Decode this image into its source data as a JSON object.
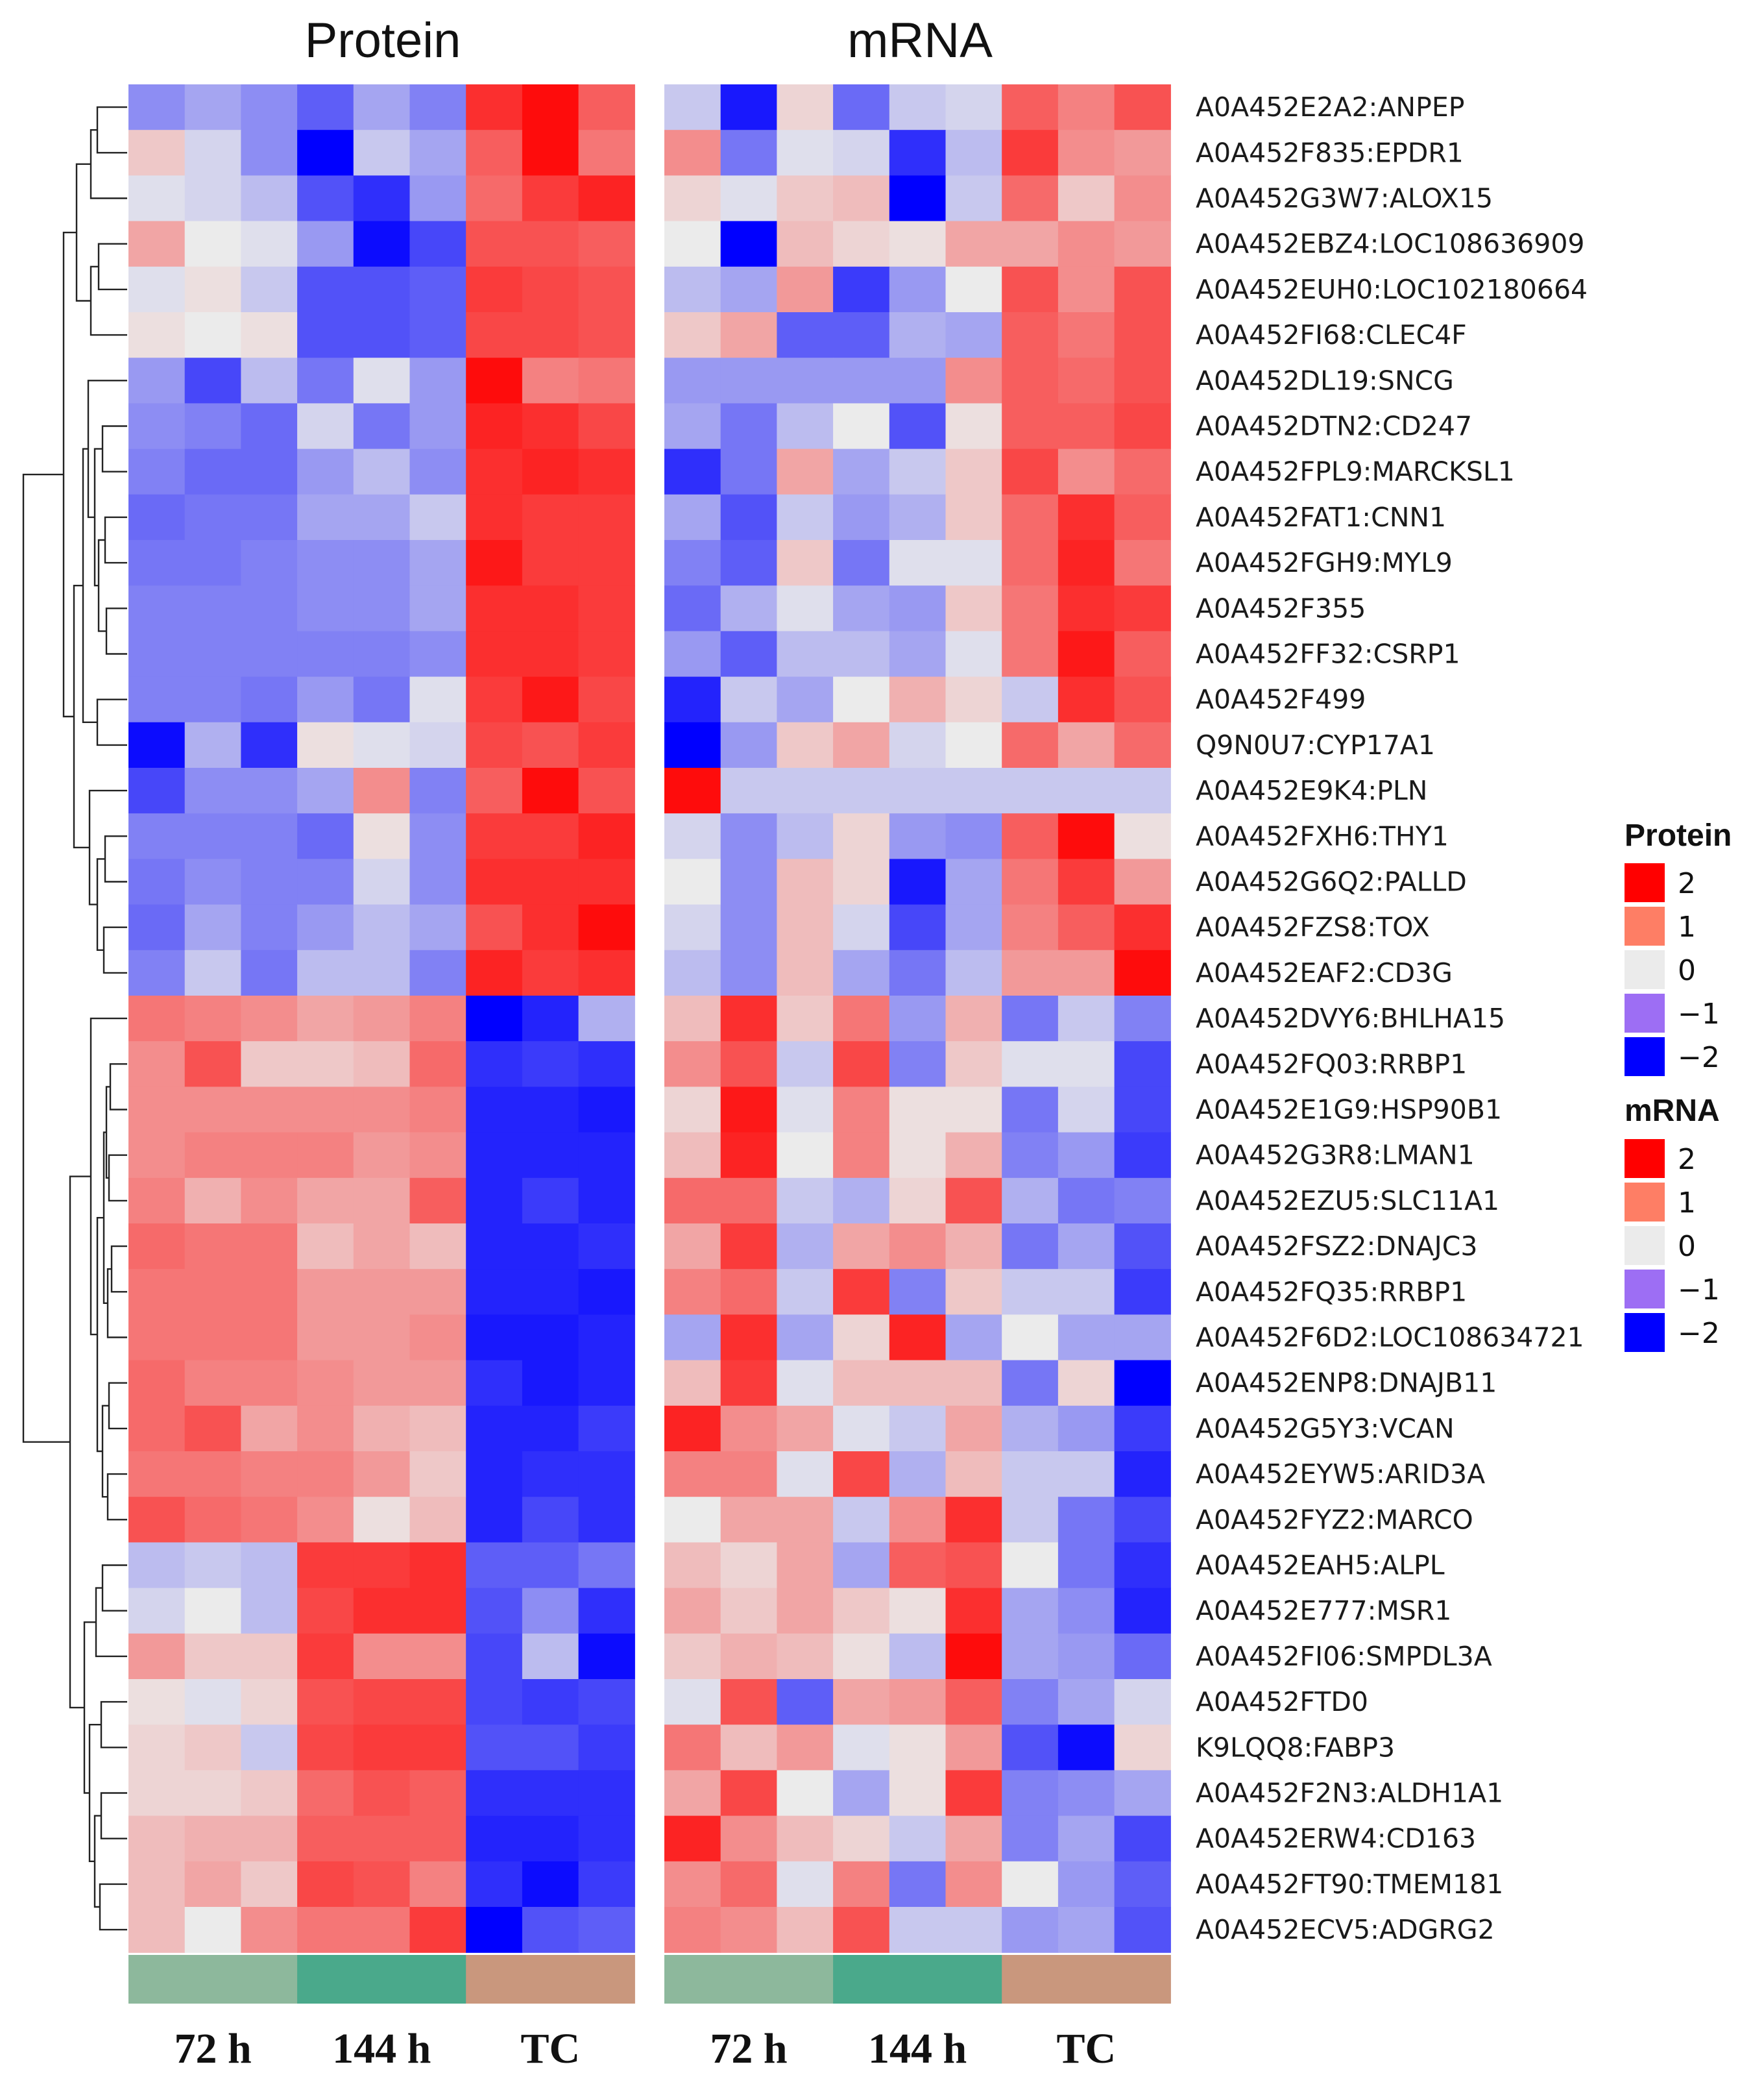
{
  "chart_data": {
    "type": "heatmap",
    "panels": [
      {
        "key": "protein",
        "title": "Protein"
      },
      {
        "key": "mrna",
        "title": "mRNA"
      }
    ],
    "groups": [
      {
        "label": "72 h",
        "color": "#8db89c"
      },
      {
        "label": "144 h",
        "color": "#4aa98b"
      },
      {
        "label": "TC",
        "color": "#c9977d"
      }
    ],
    "rows": [
      "A0A452E2A2:ANPEP",
      "A0A452F835:EPDR1",
      "A0A452G3W7:ALOX15",
      "A0A452EBZ4:LOC108636909",
      "A0A452EUH0:LOC102180664",
      "A0A452FI68:CLEC4F",
      "A0A452DL19:SNCG",
      "A0A452DTN2:CD247",
      "A0A452FPL9:MARCKSL1",
      "A0A452FAT1:CNN1",
      "A0A452FGH9:MYL9",
      "A0A452F355",
      "A0A452FF32:CSRP1",
      "A0A452F499",
      "Q9N0U7:CYP17A1",
      "A0A452E9K4:PLN",
      "A0A452FXH6:THY1",
      "A0A452G6Q2:PALLD",
      "A0A452FZS8:TOX",
      "A0A452EAF2:CD3G",
      "A0A452DVY6:BHLHA15",
      "A0A452FQ03:RRBP1",
      "A0A452E1G9:HSP90B1",
      "A0A452G3R8:LMAN1",
      "A0A452EZU5:SLC11A1",
      "A0A452FSZ2:DNAJC3",
      "A0A452FQ35:RRBP1",
      "A0A452F6D2:LOC108634721",
      "A0A452ENP8:DNAJB11",
      "A0A452G5Y3:VCAN",
      "A0A452EYW5:ARID3A",
      "A0A452FYZ2:MARCO",
      "A0A452EAH5:ALPL",
      "A0A452E777:MSR1",
      "A0A452FI06:SMPDL3A",
      "A0A452FTD0",
      "K9LQQ8:FABP3",
      "A0A452F2N3:ALDH1A1",
      "A0A452ERW4:CD163",
      "A0A452FT90:TMEM181",
      "A0A452ECV5:ADGRG2"
    ],
    "protein_values": [
      [
        -0.8,
        -0.6,
        -0.8,
        -1.2,
        -0.6,
        -0.9,
        1.6,
        1.9,
        1.2
      ],
      [
        0.3,
        -0.2,
        -0.8,
        -2.0,
        -0.3,
        -0.6,
        1.2,
        1.9,
        1.0
      ],
      [
        -0.1,
        -0.2,
        -0.4,
        -1.3,
        -1.6,
        -0.7,
        1.1,
        1.5,
        1.7
      ],
      [
        0.6,
        0.0,
        -0.1,
        -0.7,
        -1.9,
        -1.4,
        1.3,
        1.3,
        1.2
      ],
      [
        -0.1,
        0.1,
        -0.3,
        -1.3,
        -1.3,
        -1.2,
        1.5,
        1.4,
        1.3
      ],
      [
        0.1,
        0.0,
        0.1,
        -1.3,
        -1.3,
        -1.2,
        1.4,
        1.4,
        1.3
      ],
      [
        -0.7,
        -1.4,
        -0.4,
        -1.0,
        -0.1,
        -0.7,
        1.9,
        0.9,
        1.0
      ],
      [
        -0.8,
        -0.9,
        -1.1,
        -0.2,
        -1.0,
        -0.7,
        1.7,
        1.6,
        1.4
      ],
      [
        -0.9,
        -1.1,
        -1.1,
        -0.7,
        -0.4,
        -0.8,
        1.6,
        1.7,
        1.6
      ],
      [
        -1.1,
        -1.0,
        -1.0,
        -0.6,
        -0.6,
        -0.3,
        1.6,
        1.5,
        1.5
      ],
      [
        -1.0,
        -1.0,
        -0.9,
        -0.8,
        -0.8,
        -0.6,
        1.8,
        1.5,
        1.5
      ],
      [
        -0.9,
        -0.9,
        -0.9,
        -0.8,
        -0.8,
        -0.6,
        1.6,
        1.6,
        1.5
      ],
      [
        -0.9,
        -0.9,
        -0.9,
        -0.9,
        -0.9,
        -0.8,
        1.6,
        1.6,
        1.5
      ],
      [
        -0.9,
        -0.9,
        -1.0,
        -0.7,
        -1.0,
        -0.1,
        1.5,
        1.8,
        1.4
      ],
      [
        -1.9,
        -0.5,
        -1.6,
        0.1,
        -0.1,
        -0.2,
        1.4,
        1.3,
        1.5
      ],
      [
        -1.4,
        -0.8,
        -0.8,
        -0.6,
        0.8,
        -0.9,
        1.2,
        1.9,
        1.3
      ],
      [
        -0.9,
        -0.9,
        -0.9,
        -1.1,
        0.1,
        -0.8,
        1.5,
        1.5,
        1.7
      ],
      [
        -1.0,
        -0.8,
        -0.9,
        -0.9,
        -0.2,
        -0.8,
        1.6,
        1.6,
        1.6
      ],
      [
        -1.1,
        -0.6,
        -0.9,
        -0.7,
        -0.4,
        -0.6,
        1.3,
        1.6,
        1.9
      ],
      [
        -0.9,
        -0.3,
        -1.0,
        -0.4,
        -0.4,
        -0.9,
        1.7,
        1.5,
        1.6
      ],
      [
        1.0,
        0.9,
        0.8,
        0.6,
        0.7,
        0.9,
        -2.0,
        -1.7,
        -0.5
      ],
      [
        0.8,
        1.3,
        0.3,
        0.3,
        0.4,
        1.1,
        -1.6,
        -1.5,
        -1.6
      ],
      [
        0.8,
        0.8,
        0.8,
        0.8,
        0.8,
        0.9,
        -1.7,
        -1.7,
        -1.8
      ],
      [
        0.8,
        0.9,
        0.9,
        0.9,
        0.7,
        0.8,
        -1.7,
        -1.7,
        -1.7
      ],
      [
        0.9,
        0.5,
        0.8,
        0.6,
        0.6,
        1.2,
        -1.7,
        -1.5,
        -1.7
      ],
      [
        1.1,
        1.0,
        1.0,
        0.4,
        0.6,
        0.4,
        -1.7,
        -1.7,
        -1.6
      ],
      [
        1.0,
        1.0,
        1.0,
        0.7,
        0.7,
        0.7,
        -1.7,
        -1.7,
        -1.8
      ],
      [
        1.0,
        1.0,
        1.0,
        0.7,
        0.7,
        0.8,
        -1.8,
        -1.8,
        -1.7
      ],
      [
        1.1,
        0.9,
        0.9,
        0.8,
        0.7,
        0.7,
        -1.6,
        -1.8,
        -1.7
      ],
      [
        1.1,
        1.3,
        0.6,
        0.8,
        0.5,
        0.4,
        -1.7,
        -1.7,
        -1.5
      ],
      [
        1.0,
        1.0,
        0.9,
        0.9,
        0.7,
        0.3,
        -1.7,
        -1.6,
        -1.6
      ],
      [
        1.3,
        1.1,
        1.0,
        0.8,
        0.1,
        0.4,
        -1.7,
        -1.4,
        -1.6
      ],
      [
        -0.4,
        -0.3,
        -0.4,
        1.5,
        1.5,
        1.6,
        -1.2,
        -1.2,
        -1.0
      ],
      [
        -0.2,
        0.0,
        -0.4,
        1.4,
        1.6,
        1.6,
        -1.3,
        -0.8,
        -1.6
      ],
      [
        0.7,
        0.3,
        0.3,
        1.5,
        0.8,
        0.8,
        -1.4,
        -0.4,
        -1.9
      ],
      [
        0.1,
        -0.1,
        0.2,
        1.3,
        1.4,
        1.4,
        -1.4,
        -1.5,
        -1.4
      ],
      [
        0.2,
        0.3,
        -0.3,
        1.4,
        1.5,
        1.5,
        -1.3,
        -1.3,
        -1.5
      ],
      [
        0.2,
        0.2,
        0.3,
        1.1,
        1.3,
        1.2,
        -1.6,
        -1.6,
        -1.6
      ],
      [
        0.4,
        0.5,
        0.5,
        1.2,
        1.2,
        1.2,
        -1.7,
        -1.7,
        -1.6
      ],
      [
        0.4,
        0.6,
        0.3,
        1.4,
        1.3,
        0.9,
        -1.6,
        -1.9,
        -1.5
      ],
      [
        0.4,
        0.0,
        0.8,
        1.0,
        1.0,
        1.5,
        -2.0,
        -1.3,
        -1.2
      ]
    ],
    "mrna_values": [
      [
        -0.3,
        -1.8,
        0.2,
        -1.1,
        -0.3,
        -0.2,
        1.2,
        0.9,
        1.3
      ],
      [
        0.8,
        -1.0,
        -0.1,
        -0.2,
        -1.6,
        -0.4,
        1.5,
        0.8,
        0.7
      ],
      [
        0.2,
        -0.1,
        0.3,
        0.4,
        -2.0,
        -0.3,
        1.1,
        0.3,
        0.8
      ],
      [
        0.0,
        -2.0,
        0.4,
        0.2,
        0.1,
        0.6,
        0.6,
        0.8,
        0.7
      ],
      [
        -0.4,
        -0.6,
        0.7,
        -1.5,
        -0.7,
        0.0,
        1.3,
        0.8,
        1.3
      ],
      [
        0.3,
        0.6,
        -1.2,
        -1.2,
        -0.5,
        -0.6,
        1.2,
        1.0,
        1.3
      ],
      [
        -0.7,
        -0.7,
        -0.7,
        -0.7,
        -0.7,
        0.8,
        1.2,
        1.1,
        1.3
      ],
      [
        -0.6,
        -1.0,
        -0.4,
        0.0,
        -1.3,
        0.1,
        1.2,
        1.2,
        1.4
      ],
      [
        -1.6,
        -1.0,
        0.6,
        -0.6,
        -0.3,
        0.3,
        1.4,
        0.8,
        1.1
      ],
      [
        -0.6,
        -1.3,
        -0.3,
        -0.7,
        -0.5,
        0.3,
        1.1,
        1.6,
        1.2
      ],
      [
        -0.9,
        -1.2,
        0.3,
        -1.0,
        -0.1,
        -0.1,
        1.1,
        1.7,
        1.0
      ],
      [
        -1.1,
        -0.5,
        -0.1,
        -0.6,
        -0.7,
        0.3,
        1.0,
        1.6,
        1.5
      ],
      [
        -0.7,
        -1.2,
        -0.4,
        -0.4,
        -0.6,
        -0.1,
        1.0,
        1.8,
        1.2
      ],
      [
        -1.7,
        -0.3,
        -0.6,
        0.0,
        0.5,
        0.2,
        -0.3,
        1.6,
        1.3
      ],
      [
        -2.0,
        -0.7,
        0.3,
        0.6,
        -0.2,
        0.0,
        1.1,
        0.6,
        1.1
      ],
      [
        1.9,
        -0.3,
        -0.3,
        -0.3,
        -0.3,
        -0.3,
        -0.3,
        -0.3,
        -0.3
      ],
      [
        -0.2,
        -0.8,
        -0.4,
        0.2,
        -0.7,
        -0.8,
        1.2,
        1.9,
        0.1
      ],
      [
        0.0,
        -0.8,
        0.4,
        0.2,
        -1.8,
        -0.6,
        1.0,
        1.5,
        0.7
      ],
      [
        -0.2,
        -0.8,
        0.4,
        -0.2,
        -1.4,
        -0.6,
        0.9,
        1.2,
        1.6
      ],
      [
        -0.4,
        -0.8,
        0.4,
        -0.6,
        -1.0,
        -0.4,
        0.7,
        0.7,
        1.9
      ],
      [
        0.4,
        1.6,
        0.3,
        1.0,
        -0.7,
        0.5,
        -1.0,
        -0.3,
        -0.9
      ],
      [
        0.8,
        1.3,
        -0.3,
        1.4,
        -0.9,
        0.3,
        -0.1,
        -0.1,
        -1.4
      ],
      [
        0.2,
        1.8,
        -0.1,
        0.9,
        0.1,
        0.1,
        -1.0,
        -0.2,
        -1.4
      ],
      [
        0.4,
        1.7,
        0.0,
        0.9,
        0.1,
        0.5,
        -0.9,
        -0.7,
        -1.5
      ],
      [
        1.1,
        1.1,
        -0.3,
        -0.5,
        0.2,
        1.3,
        -0.5,
        -1.0,
        -0.9
      ],
      [
        0.6,
        1.5,
        -0.5,
        0.6,
        0.8,
        0.5,
        -1.0,
        -0.6,
        -1.3
      ],
      [
        0.9,
        1.1,
        -0.3,
        1.5,
        -0.9,
        0.3,
        -0.3,
        -0.3,
        -1.5
      ],
      [
        -0.6,
        1.6,
        -0.6,
        0.2,
        1.7,
        -0.6,
        0.0,
        -0.6,
        -0.6
      ],
      [
        0.4,
        1.5,
        -0.1,
        0.4,
        0.4,
        0.4,
        -1.0,
        0.2,
        -2.0
      ],
      [
        1.7,
        0.8,
        0.6,
        -0.1,
        -0.3,
        0.6,
        -0.5,
        -0.7,
        -1.5
      ],
      [
        0.9,
        0.9,
        -0.1,
        1.4,
        -0.5,
        0.4,
        -0.3,
        -0.3,
        -1.7
      ],
      [
        0.0,
        0.6,
        0.6,
        -0.3,
        0.8,
        1.6,
        -0.3,
        -1.0,
        -1.4
      ],
      [
        0.4,
        0.2,
        0.6,
        -0.6,
        1.2,
        1.3,
        0.0,
        -1.0,
        -1.6
      ],
      [
        0.6,
        0.3,
        0.6,
        0.3,
        0.1,
        1.6,
        -0.6,
        -0.8,
        -1.7
      ],
      [
        0.3,
        0.5,
        0.4,
        0.1,
        -0.4,
        1.9,
        -0.6,
        -0.7,
        -1.1
      ],
      [
        -0.1,
        1.3,
        -1.2,
        0.6,
        0.7,
        1.2,
        -0.9,
        -0.6,
        -0.2
      ],
      [
        1.0,
        0.4,
        0.7,
        -0.1,
        0.1,
        0.7,
        -1.3,
        -1.9,
        0.2
      ],
      [
        0.6,
        1.4,
        0.0,
        -0.6,
        0.1,
        1.5,
        -0.9,
        -0.8,
        -0.6
      ],
      [
        1.7,
        0.8,
        0.4,
        0.2,
        -0.3,
        0.6,
        -0.9,
        -0.6,
        -1.4
      ],
      [
        0.8,
        1.1,
        -0.1,
        0.9,
        -1.0,
        0.8,
        0.0,
        -0.7,
        -1.2
      ],
      [
        0.9,
        0.8,
        0.4,
        1.3,
        -0.3,
        -0.3,
        -0.7,
        -0.6,
        -1.3
      ]
    ],
    "legends": [
      {
        "title": "Protein",
        "ticks": [
          "2",
          "1",
          "0",
          "−1",
          "−2"
        ],
        "colors": [
          "#ff0000",
          "#fe7e65",
          "#ebebeb",
          "#9d6ef4",
          "#0000ff"
        ]
      },
      {
        "title": "mRNA",
        "ticks": [
          "2",
          "1",
          "0",
          "−1",
          "−2"
        ],
        "colors": [
          "#ff0000",
          "#fe7e65",
          "#ebebeb",
          "#9d6ef4",
          "#0000ff"
        ]
      }
    ],
    "color_scale": {
      "min": -2,
      "mid": 0,
      "max": 2,
      "low": "#0000ff",
      "mid_color": "#ebebeb",
      "high": "#ff0000"
    }
  }
}
